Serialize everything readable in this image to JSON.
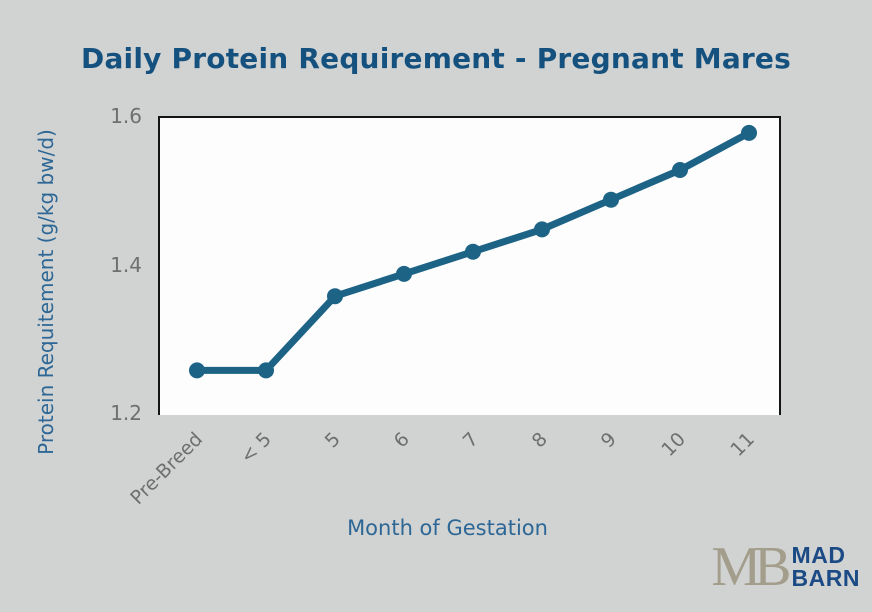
{
  "title": "Daily Protein Requirement - Pregnant Mares",
  "chart_data": {
    "type": "line",
    "title": "Daily Protein Requirement - Pregnant Mares",
    "xlabel": "Month of Gestation",
    "ylabel": "Protein Requitement (g/kg bw/d)",
    "categories": [
      "Pre-Breed",
      "< 5",
      "5",
      "6",
      "7",
      "8",
      "9",
      "10",
      "11"
    ],
    "values": [
      1.26,
      1.26,
      1.36,
      1.39,
      1.42,
      1.45,
      1.49,
      1.53,
      1.58
    ],
    "ylim": [
      1.2,
      1.6
    ],
    "yticks": {
      "values": [
        1.6,
        1.4,
        1.2
      ],
      "labels": [
        "1.6",
        "1.4",
        "1.2"
      ]
    },
    "grid": false,
    "legend_position": "none",
    "line_color": "#1c6386",
    "marker": "circle",
    "marker_color": "#1c6386"
  },
  "colors": {
    "background": "#d1d2d2",
    "plot_background": "#fdfdfd",
    "plot_border": "#141414",
    "title_text": "#15517f",
    "axis_label_text": "#2d6795",
    "tick_text": "#6f6f6f",
    "line": "#1c6386",
    "logo_monogram": "#a39d8b",
    "logo_wordmark": "#1b4a85"
  },
  "logo": {
    "monogram": "MB",
    "word_line1": "MAD",
    "word_line2": "BARN"
  }
}
